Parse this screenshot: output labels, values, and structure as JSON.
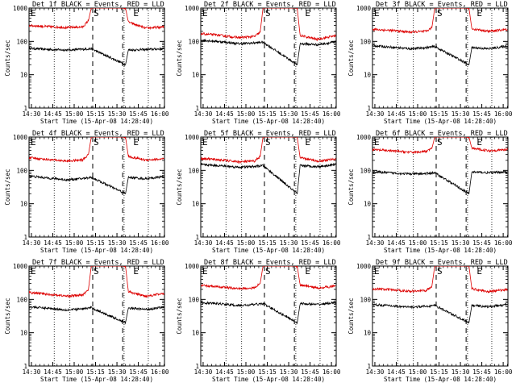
{
  "colors": {
    "events": "#000000",
    "lld": "#dd0000",
    "axis": "#000000",
    "background": "#ffffff"
  },
  "x_tick_labels": [
    "14:30",
    "14:45",
    "15:00",
    "15:15",
    "15:30",
    "15:45",
    "16:00"
  ],
  "x_axis_label": "Start Time (15-Apr-08 14:28:40)",
  "y_axis_label": "Counts/sec",
  "y_tick_labels": [
    "1",
    "10",
    "100",
    "1000"
  ],
  "marker_labels": {
    "start_left": "E",
    "saa_start": "S",
    "saa_end": "E"
  },
  "chart_data": [
    {
      "type": "line",
      "title": "Det 1f BLACK = Events, RED = LLD",
      "x_range_min": [
        -1.67,
        93.33
      ],
      "y_range": [
        1,
        1000
      ],
      "y_scale": "log",
      "saa_in_min": 43,
      "saa_out_min": 64,
      "dotted_min": [
        16,
        27,
        65,
        82
      ],
      "series": [
        {
          "name": "Events",
          "color": "black",
          "values": [
            {
              "x": -1.67,
              "y": 62
            },
            {
              "x": 10,
              "y": 58
            },
            {
              "x": 25,
              "y": 55
            },
            {
              "x": 36,
              "y": 58
            },
            {
              "x": 42,
              "y": 60
            },
            {
              "x": 66,
              "y": 20
            },
            {
              "x": 68,
              "y": 55
            },
            {
              "x": 80,
              "y": 57
            },
            {
              "x": 93,
              "y": 60
            }
          ]
        },
        {
          "name": "LLD",
          "color": "red",
          "values": [
            {
              "x": -1.67,
              "y": 300
            },
            {
              "x": 10,
              "y": 280
            },
            {
              "x": 25,
              "y": 260
            },
            {
              "x": 36,
              "y": 270
            },
            {
              "x": 40,
              "y": 420
            },
            {
              "x": 42,
              "y": 1000
            },
            {
              "x": 66,
              "y": 1000
            },
            {
              "x": 68,
              "y": 380
            },
            {
              "x": 80,
              "y": 250
            },
            {
              "x": 93,
              "y": 270
            }
          ]
        }
      ]
    },
    {
      "type": "line",
      "title": "Det 2f BLACK = Events, RED = LLD",
      "x_range_min": [
        -1.67,
        93.33
      ],
      "y_range": [
        1,
        1000
      ],
      "y_scale": "log",
      "saa_in_min": 43,
      "saa_out_min": 64,
      "dotted_min": [
        16,
        27,
        65,
        82
      ],
      "series": [
        {
          "name": "Events",
          "color": "black",
          "values": [
            {
              "x": -1.67,
              "y": 110
            },
            {
              "x": 10,
              "y": 100
            },
            {
              "x": 25,
              "y": 85
            },
            {
              "x": 36,
              "y": 90
            },
            {
              "x": 42,
              "y": 95
            },
            {
              "x": 66,
              "y": 20
            },
            {
              "x": 68,
              "y": 85
            },
            {
              "x": 80,
              "y": 80
            },
            {
              "x": 93,
              "y": 95
            }
          ]
        },
        {
          "name": "LLD",
          "color": "red",
          "values": [
            {
              "x": -1.67,
              "y": 170
            },
            {
              "x": 10,
              "y": 155
            },
            {
              "x": 25,
              "y": 130
            },
            {
              "x": 36,
              "y": 140
            },
            {
              "x": 40,
              "y": 190
            },
            {
              "x": 42,
              "y": 1000
            },
            {
              "x": 66,
              "y": 1000
            },
            {
              "x": 68,
              "y": 150
            },
            {
              "x": 80,
              "y": 115
            },
            {
              "x": 93,
              "y": 150
            }
          ]
        }
      ]
    },
    {
      "type": "line",
      "title": "Det 3f BLACK = Events, RED = LLD",
      "x_range_min": [
        -1.67,
        93.33
      ],
      "y_range": [
        1,
        1000
      ],
      "y_scale": "log",
      "saa_in_min": 43,
      "saa_out_min": 64,
      "dotted_min": [
        16,
        27,
        65,
        82
      ],
      "series": [
        {
          "name": "Events",
          "color": "black",
          "values": [
            {
              "x": -1.67,
              "y": 75
            },
            {
              "x": 10,
              "y": 68
            },
            {
              "x": 25,
              "y": 60
            },
            {
              "x": 36,
              "y": 65
            },
            {
              "x": 42,
              "y": 70
            },
            {
              "x": 66,
              "y": 20
            },
            {
              "x": 68,
              "y": 65
            },
            {
              "x": 80,
              "y": 60
            },
            {
              "x": 93,
              "y": 72
            }
          ]
        },
        {
          "name": "LLD",
          "color": "red",
          "values": [
            {
              "x": -1.67,
              "y": 230
            },
            {
              "x": 10,
              "y": 215
            },
            {
              "x": 25,
              "y": 190
            },
            {
              "x": 36,
              "y": 200
            },
            {
              "x": 40,
              "y": 260
            },
            {
              "x": 42,
              "y": 1000
            },
            {
              "x": 66,
              "y": 1000
            },
            {
              "x": 68,
              "y": 240
            },
            {
              "x": 80,
              "y": 200
            },
            {
              "x": 93,
              "y": 230
            }
          ]
        }
      ]
    },
    {
      "type": "line",
      "title": "Det 4f BLACK = Events, RED = LLD",
      "x_range_min": [
        -1.67,
        93.33
      ],
      "y_range": [
        1,
        1000
      ],
      "y_scale": "log",
      "saa_in_min": 43,
      "saa_out_min": 64,
      "dotted_min": [
        16,
        27,
        65,
        82
      ],
      "series": [
        {
          "name": "Events",
          "color": "black",
          "values": [
            {
              "x": -1.67,
              "y": 68
            },
            {
              "x": 10,
              "y": 60
            },
            {
              "x": 25,
              "y": 52
            },
            {
              "x": 36,
              "y": 57
            },
            {
              "x": 42,
              "y": 62
            },
            {
              "x": 66,
              "y": 20
            },
            {
              "x": 68,
              "y": 62
            },
            {
              "x": 80,
              "y": 56
            },
            {
              "x": 93,
              "y": 65
            }
          ]
        },
        {
          "name": "LLD",
          "color": "red",
          "values": [
            {
              "x": -1.67,
              "y": 240
            },
            {
              "x": 10,
              "y": 215
            },
            {
              "x": 25,
              "y": 190
            },
            {
              "x": 36,
              "y": 205
            },
            {
              "x": 40,
              "y": 300
            },
            {
              "x": 42,
              "y": 1000
            },
            {
              "x": 66,
              "y": 1000
            },
            {
              "x": 68,
              "y": 260
            },
            {
              "x": 80,
              "y": 205
            },
            {
              "x": 93,
              "y": 220
            }
          ]
        }
      ]
    },
    {
      "type": "line",
      "title": "Det 5f BLACK = Events, RED = LLD",
      "x_range_min": [
        -1.67,
        93.33
      ],
      "y_range": [
        1,
        1000
      ],
      "y_scale": "log",
      "saa_in_min": 43,
      "saa_out_min": 64,
      "dotted_min": [
        16,
        27,
        65,
        82
      ],
      "series": [
        {
          "name": "Events",
          "color": "black",
          "values": [
            {
              "x": -1.67,
              "y": 150
            },
            {
              "x": 10,
              "y": 140
            },
            {
              "x": 25,
              "y": 125
            },
            {
              "x": 36,
              "y": 130
            },
            {
              "x": 42,
              "y": 140
            },
            {
              "x": 66,
              "y": 20
            },
            {
              "x": 68,
              "y": 140
            },
            {
              "x": 80,
              "y": 130
            },
            {
              "x": 93,
              "y": 150
            }
          ]
        },
        {
          "name": "LLD",
          "color": "red",
          "values": [
            {
              "x": -1.67,
              "y": 230
            },
            {
              "x": 10,
              "y": 210
            },
            {
              "x": 25,
              "y": 180
            },
            {
              "x": 36,
              "y": 190
            },
            {
              "x": 40,
              "y": 260
            },
            {
              "x": 42,
              "y": 1000
            },
            {
              "x": 66,
              "y": 1000
            },
            {
              "x": 68,
              "y": 240
            },
            {
              "x": 80,
              "y": 190
            },
            {
              "x": 93,
              "y": 220
            }
          ]
        }
      ]
    },
    {
      "type": "line",
      "title": "Det 6f BLACK = Events, RED = LLD",
      "x_range_min": [
        -1.67,
        93.33
      ],
      "y_range": [
        1,
        1000
      ],
      "y_scale": "log",
      "saa_in_min": 43,
      "saa_out_min": 64,
      "dotted_min": [
        16,
        27,
        65,
        82
      ],
      "series": [
        {
          "name": "Events",
          "color": "black",
          "values": [
            {
              "x": -1.67,
              "y": 90
            },
            {
              "x": 10,
              "y": 85
            },
            {
              "x": 25,
              "y": 78
            },
            {
              "x": 36,
              "y": 80
            },
            {
              "x": 42,
              "y": 85
            },
            {
              "x": 66,
              "y": 20
            },
            {
              "x": 68,
              "y": 90
            },
            {
              "x": 80,
              "y": 85
            },
            {
              "x": 93,
              "y": 90
            }
          ]
        },
        {
          "name": "LLD",
          "color": "red",
          "values": [
            {
              "x": -1.67,
              "y": 420
            },
            {
              "x": 10,
              "y": 390
            },
            {
              "x": 25,
              "y": 350
            },
            {
              "x": 36,
              "y": 370
            },
            {
              "x": 40,
              "y": 460
            },
            {
              "x": 42,
              "y": 1000
            },
            {
              "x": 66,
              "y": 1000
            },
            {
              "x": 68,
              "y": 460
            },
            {
              "x": 80,
              "y": 390
            },
            {
              "x": 93,
              "y": 420
            }
          ]
        }
      ]
    },
    {
      "type": "line",
      "title": "Det 7f BLACK = Events, RED = LLD",
      "x_range_min": [
        -1.67,
        93.33
      ],
      "y_range": [
        1,
        1000
      ],
      "y_scale": "log",
      "saa_in_min": 43,
      "saa_out_min": 64,
      "dotted_min": [
        16,
        27,
        65,
        82
      ],
      "series": [
        {
          "name": "Events",
          "color": "black",
          "values": [
            {
              "x": -1.67,
              "y": 60
            },
            {
              "x": 10,
              "y": 55
            },
            {
              "x": 25,
              "y": 48
            },
            {
              "x": 36,
              "y": 52
            },
            {
              "x": 42,
              "y": 56
            },
            {
              "x": 66,
              "y": 20
            },
            {
              "x": 68,
              "y": 55
            },
            {
              "x": 80,
              "y": 50
            },
            {
              "x": 93,
              "y": 58
            }
          ]
        },
        {
          "name": "LLD",
          "color": "red",
          "values": [
            {
              "x": -1.67,
              "y": 160
            },
            {
              "x": 10,
              "y": 145
            },
            {
              "x": 25,
              "y": 125
            },
            {
              "x": 36,
              "y": 135
            },
            {
              "x": 40,
              "y": 200
            },
            {
              "x": 42,
              "y": 1000
            },
            {
              "x": 66,
              "y": 1000
            },
            {
              "x": 68,
              "y": 170
            },
            {
              "x": 80,
              "y": 125
            },
            {
              "x": 93,
              "y": 150
            }
          ]
        }
      ]
    },
    {
      "type": "line",
      "title": "Det 8f BLACK = Events, RED = LLD",
      "x_range_min": [
        -1.67,
        93.33
      ],
      "y_range": [
        1,
        1000
      ],
      "y_scale": "log",
      "saa_in_min": 43,
      "saa_out_min": 64,
      "dotted_min": [
        16,
        27,
        65,
        82
      ],
      "series": [
        {
          "name": "Events",
          "color": "black",
          "values": [
            {
              "x": -1.67,
              "y": 80
            },
            {
              "x": 10,
              "y": 75
            },
            {
              "x": 25,
              "y": 65
            },
            {
              "x": 36,
              "y": 70
            },
            {
              "x": 42,
              "y": 75
            },
            {
              "x": 66,
              "y": 20
            },
            {
              "x": 68,
              "y": 75
            },
            {
              "x": 80,
              "y": 70
            },
            {
              "x": 93,
              "y": 80
            }
          ]
        },
        {
          "name": "LLD",
          "color": "red",
          "values": [
            {
              "x": -1.67,
              "y": 260
            },
            {
              "x": 10,
              "y": 240
            },
            {
              "x": 25,
              "y": 210
            },
            {
              "x": 36,
              "y": 220
            },
            {
              "x": 40,
              "y": 300
            },
            {
              "x": 42,
              "y": 1000
            },
            {
              "x": 66,
              "y": 1000
            },
            {
              "x": 68,
              "y": 270
            },
            {
              "x": 80,
              "y": 220
            },
            {
              "x": 93,
              "y": 250
            }
          ]
        }
      ]
    },
    {
      "type": "line",
      "title": "Det 9f BLACK = Events, RED = LLD",
      "x_range_min": [
        -1.67,
        93.33
      ],
      "y_range": [
        1,
        1000
      ],
      "y_scale": "log",
      "saa_in_min": 43,
      "saa_out_min": 64,
      "dotted_min": [
        16,
        27,
        65,
        82
      ],
      "series": [
        {
          "name": "Events",
          "color": "black",
          "values": [
            {
              "x": -1.67,
              "y": 70
            },
            {
              "x": 10,
              "y": 65
            },
            {
              "x": 25,
              "y": 58
            },
            {
              "x": 36,
              "y": 62
            },
            {
              "x": 42,
              "y": 66
            },
            {
              "x": 66,
              "y": 20
            },
            {
              "x": 68,
              "y": 66
            },
            {
              "x": 80,
              "y": 60
            },
            {
              "x": 93,
              "y": 70
            }
          ]
        },
        {
          "name": "LLD",
          "color": "red",
          "values": [
            {
              "x": -1.67,
              "y": 210
            },
            {
              "x": 10,
              "y": 195
            },
            {
              "x": 25,
              "y": 175
            },
            {
              "x": 36,
              "y": 185
            },
            {
              "x": 40,
              "y": 250
            },
            {
              "x": 42,
              "y": 1000
            },
            {
              "x": 66,
              "y": 1000
            },
            {
              "x": 68,
              "y": 210
            },
            {
              "x": 80,
              "y": 170
            },
            {
              "x": 93,
              "y": 200
            }
          ]
        }
      ]
    }
  ]
}
